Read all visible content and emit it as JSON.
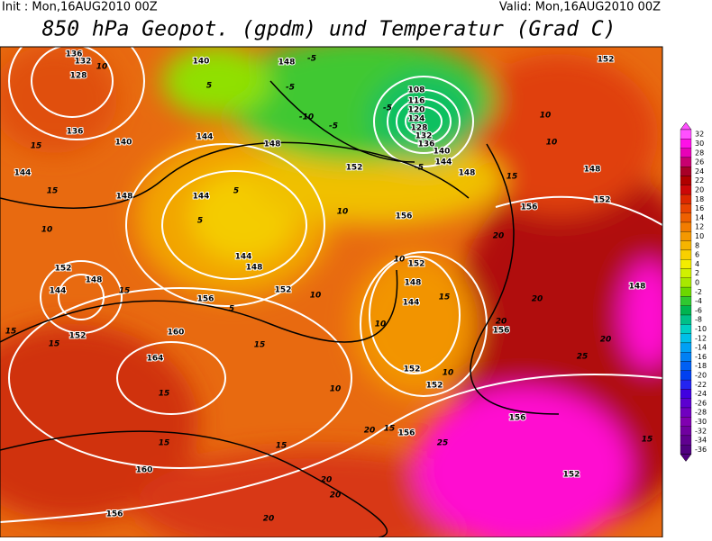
{
  "header": {
    "init": "Init : Mon,16AUG2010 00Z",
    "valid": "Valid: Mon,16AUG2010 00Z",
    "title": "850 hPa Geopot. (gpdm) und Temperatur (Grad C)"
  },
  "colorbar": {
    "levels": [
      32,
      30,
      28,
      26,
      24,
      22,
      20,
      18,
      16,
      14,
      12,
      10,
      8,
      6,
      4,
      2,
      0,
      -2,
      -4,
      -6,
      -8,
      -10,
      -12,
      -14,
      -16,
      -18,
      -20,
      -22,
      -24,
      -26,
      -28,
      -30,
      -32,
      -34,
      -36
    ],
    "colors": [
      "#ff50ff",
      "#ff10e8",
      "#e800b8",
      "#c80070",
      "#a80028",
      "#b00000",
      "#cc0808",
      "#dc2800",
      "#e84400",
      "#ee6000",
      "#f27c00",
      "#f49800",
      "#f6b400",
      "#f8d000",
      "#f4ec00",
      "#d0f000",
      "#a8e800",
      "#6cd800",
      "#30c830",
      "#00b450",
      "#00c088",
      "#00d0c4",
      "#00c0e8",
      "#00a0f4",
      "#0080f4",
      "#0060f4",
      "#0040f0",
      "#2424f0",
      "#4000e0",
      "#5c00d0",
      "#7000c0",
      "#8000b0",
      "#7000a0",
      "#600090",
      "#500080"
    ]
  },
  "geopotential_labels": [
    136,
    132,
    128,
    136,
    140,
    144,
    148,
    140,
    144,
    144,
    148,
    152,
    148,
    108,
    116,
    120,
    124,
    128,
    132,
    136,
    140,
    144,
    148,
    152,
    148,
    152,
    156,
    156,
    144,
    148,
    152,
    156,
    152,
    148,
    144,
    152,
    160,
    164,
    152,
    148,
    144,
    152,
    152,
    156,
    156,
    156,
    160,
    156,
    152,
    148
  ],
  "temperature_labels": [
    -5,
    -5,
    -5,
    -5,
    -10,
    -5,
    5,
    5,
    5,
    5,
    10,
    10,
    10,
    10,
    10,
    10,
    10,
    10,
    15,
    15,
    15,
    15,
    15,
    15,
    15,
    15,
    15,
    15,
    15,
    15,
    20,
    20,
    20,
    20,
    20,
    20,
    20,
    20,
    25,
    25,
    15,
    10,
    10
  ]
}
